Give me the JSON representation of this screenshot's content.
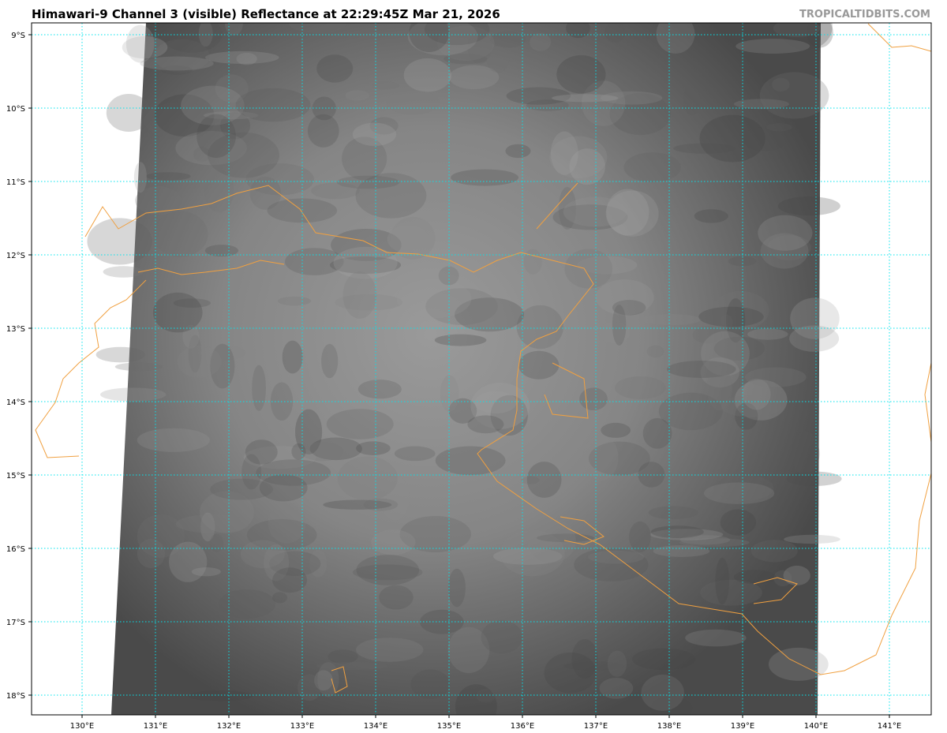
{
  "title": "Himawari-9 Channel 3 (visible) Reflectance at 22:29:45Z Mar 21, 2026",
  "watermark": "TROPICALTIDBITS.COM",
  "map": {
    "lat_labels": [
      "9°S",
      "10°S",
      "11°S",
      "12°S",
      "13°S",
      "14°S",
      "15°S",
      "16°S",
      "17°S",
      "18°S"
    ],
    "lon_labels": [
      "130°E",
      "131°E",
      "132°E",
      "133°E",
      "134°E",
      "135°E",
      "136°E",
      "137°E",
      "138°E",
      "139°E",
      "140°E",
      "141°E"
    ],
    "grid_color": "#00e5ee",
    "coast_color": "#f0a040"
  }
}
